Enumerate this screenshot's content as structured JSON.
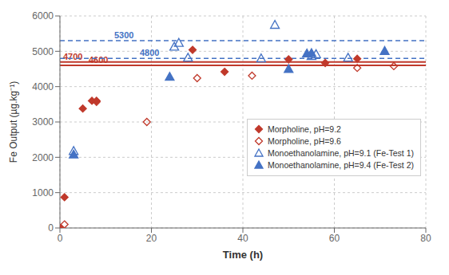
{
  "chart_data": {
    "type": "scatter",
    "xlabel": "Time (h)",
    "ylabel": "Fe Output (µg.kg⁻¹)",
    "xlim": [
      0,
      80
    ],
    "ylim": [
      0,
      6000
    ],
    "xticks": [
      0,
      20,
      40,
      60,
      80
    ],
    "yticks": [
      0,
      1000,
      2000,
      3000,
      4000,
      5000,
      6000
    ],
    "grid": true,
    "legend": "right",
    "series": [
      {
        "name": "Morpholine, pH=9.2",
        "color": "#C0392B",
        "marker": "diamond",
        "x": [
          0,
          1,
          5,
          7,
          8,
          29,
          36,
          50,
          58,
          65
        ],
        "values": [
          0,
          870,
          3380,
          3600,
          3600,
          5040,
          4420,
          4770,
          4670,
          4790
        ]
      },
      {
        "name": "Morpholine, pH=9.6",
        "color": "#C0392B",
        "marker": "diamond-open",
        "x": [
          1,
          8,
          19,
          30,
          42,
          65,
          73
        ],
        "values": [
          100,
          3570,
          3000,
          4240,
          4310,
          4530,
          4580
        ]
      },
      {
        "name": "Monoethanolamine, pH=9.1 (Fe-Test 1)",
        "color": "#4472C4",
        "marker": "triangle-open",
        "x": [
          3,
          25,
          26,
          28,
          44,
          47,
          55,
          56,
          63
        ],
        "values": [
          2180,
          5130,
          5240,
          4820,
          4800,
          5750,
          4870,
          4920,
          4820
        ]
      },
      {
        "name": "Monoethanolamine, pH=9.4 (Fe-Test 2)",
        "color": "#4472C4",
        "marker": "triangle",
        "x": [
          3,
          24,
          50,
          54,
          55,
          71
        ],
        "values": [
          2080,
          4280,
          4500,
          4940,
          4950,
          5010
        ]
      }
    ],
    "hlines": [
      {
        "value": 4700,
        "color": "#C0392B",
        "line_style": "solid"
      },
      {
        "value": 4600,
        "color": "#C0392B",
        "line_style": "solid"
      },
      {
        "value": 5300,
        "color": "#4472C4",
        "line_style": "dashed"
      },
      {
        "value": 4800,
        "color": "#4472C4",
        "line_style": "dashed"
      }
    ]
  }
}
